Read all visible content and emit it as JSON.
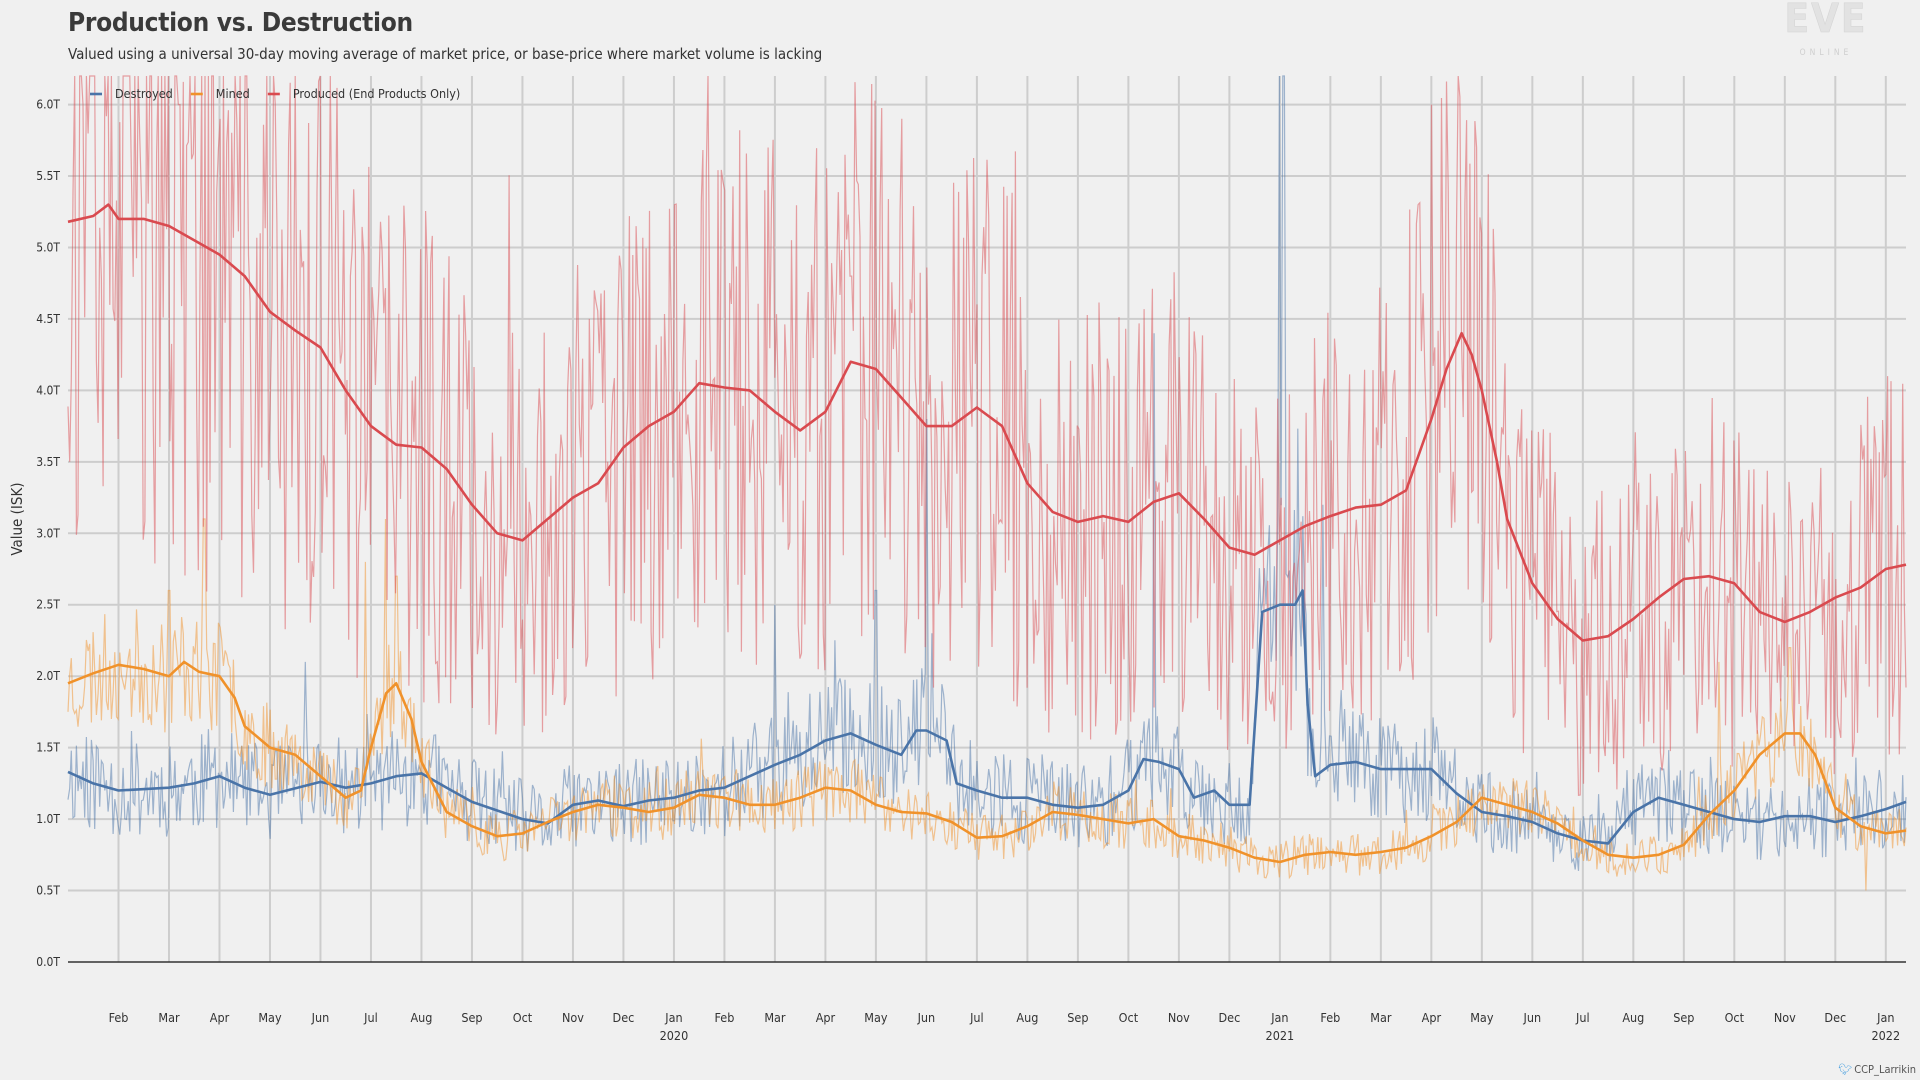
{
  "logo": {
    "main": "EVE",
    "sub": "ONLINE"
  },
  "credit": "CCP_Larrikin",
  "chart_data": {
    "type": "line",
    "title": "Production vs. Destruction",
    "subtitle": "Valued using a universal 30-day moving average of market price, or base-price where market volume is lacking",
    "xlabel": "",
    "ylabel": "Value (ISK)",
    "ylim": [
      0,
      6.2
    ],
    "grid": true,
    "legend": "top-left",
    "y_ticks": [
      {
        "v": 0,
        "label": "0.0T"
      },
      {
        "v": 0.5,
        "label": "0.5T"
      },
      {
        "v": 1,
        "label": "1.0T"
      },
      {
        "v": 1.5,
        "label": "1.5T"
      },
      {
        "v": 2,
        "label": "2.0T"
      },
      {
        "v": 2.5,
        "label": "2.5T"
      },
      {
        "v": 3,
        "label": "3.0T"
      },
      {
        "v": 3.5,
        "label": "3.5T"
      },
      {
        "v": 4,
        "label": "4.0T"
      },
      {
        "v": 4.5,
        "label": "4.5T"
      },
      {
        "v": 5,
        "label": "5.0T"
      },
      {
        "v": 5.5,
        "label": "5.5T"
      },
      {
        "v": 6,
        "label": "6.0T"
      }
    ],
    "x_range_months": [
      0,
      36.4
    ],
    "x_ticks": [
      {
        "m": 1,
        "label": "Feb"
      },
      {
        "m": 2,
        "label": "Mar"
      },
      {
        "m": 3,
        "label": "Apr"
      },
      {
        "m": 4,
        "label": "May"
      },
      {
        "m": 5,
        "label": "Jun"
      },
      {
        "m": 6,
        "label": "Jul"
      },
      {
        "m": 7,
        "label": "Aug"
      },
      {
        "m": 8,
        "label": "Sep"
      },
      {
        "m": 9,
        "label": "Oct"
      },
      {
        "m": 10,
        "label": "Nov"
      },
      {
        "m": 11,
        "label": "Dec"
      },
      {
        "m": 12,
        "label": "Jan",
        "year": "2020"
      },
      {
        "m": 13,
        "label": "Feb"
      },
      {
        "m": 14,
        "label": "Mar"
      },
      {
        "m": 15,
        "label": "Apr"
      },
      {
        "m": 16,
        "label": "May"
      },
      {
        "m": 17,
        "label": "Jun"
      },
      {
        "m": 18,
        "label": "Jul"
      },
      {
        "m": 19,
        "label": "Aug"
      },
      {
        "m": 20,
        "label": "Sep"
      },
      {
        "m": 21,
        "label": "Oct"
      },
      {
        "m": 22,
        "label": "Nov"
      },
      {
        "m": 23,
        "label": "Dec"
      },
      {
        "m": 24,
        "label": "Jan",
        "year": "2021"
      },
      {
        "m": 25,
        "label": "Feb"
      },
      {
        "m": 26,
        "label": "Mar"
      },
      {
        "m": 27,
        "label": "Apr"
      },
      {
        "m": 28,
        "label": "May"
      },
      {
        "m": 29,
        "label": "Jun"
      },
      {
        "m": 30,
        "label": "Jul"
      },
      {
        "m": 31,
        "label": "Aug"
      },
      {
        "m": 32,
        "label": "Sep"
      },
      {
        "m": 33,
        "label": "Oct"
      },
      {
        "m": 34,
        "label": "Nov"
      },
      {
        "m": 35,
        "label": "Dec"
      },
      {
        "m": 36,
        "label": "Jan",
        "year": "2022"
      }
    ],
    "series": [
      {
        "name": "Destroyed",
        "color": "#4a74a8",
        "noise": 0.28,
        "seed": 11,
        "spikes": [
          [
            4.7,
            2.1
          ],
          [
            14.0,
            2.5
          ],
          [
            16.0,
            2.6
          ],
          [
            17.0,
            3.8
          ],
          [
            17.1,
            2.3
          ],
          [
            21.5,
            4.4
          ],
          [
            24.0,
            6.3
          ],
          [
            24.05,
            6.3
          ],
          [
            24.1,
            6.3
          ],
          [
            24.85,
            3.2
          ]
        ],
        "ma": [
          [
            0,
            1.33
          ],
          [
            0.5,
            1.25
          ],
          [
            1,
            1.2
          ],
          [
            2,
            1.22
          ],
          [
            2.5,
            1.25
          ],
          [
            3,
            1.3
          ],
          [
            3.5,
            1.22
          ],
          [
            4,
            1.17
          ],
          [
            5,
            1.26
          ],
          [
            5.5,
            1.22
          ],
          [
            6,
            1.25
          ],
          [
            6.5,
            1.3
          ],
          [
            7,
            1.32
          ],
          [
            7.5,
            1.22
          ],
          [
            8,
            1.12
          ],
          [
            8.5,
            1.06
          ],
          [
            9,
            1.0
          ],
          [
            9.5,
            0.97
          ],
          [
            10,
            1.1
          ],
          [
            10.5,
            1.13
          ],
          [
            11,
            1.09
          ],
          [
            11.5,
            1.13
          ],
          [
            12,
            1.15
          ],
          [
            12.5,
            1.2
          ],
          [
            13,
            1.22
          ],
          [
            13.5,
            1.3
          ],
          [
            14,
            1.38
          ],
          [
            14.5,
            1.45
          ],
          [
            15,
            1.55
          ],
          [
            15.5,
            1.6
          ],
          [
            16,
            1.52
          ],
          [
            16.5,
            1.45
          ],
          [
            16.8,
            1.62
          ],
          [
            17,
            1.62
          ],
          [
            17.4,
            1.55
          ],
          [
            17.6,
            1.25
          ],
          [
            18,
            1.2
          ],
          [
            18.5,
            1.15
          ],
          [
            19,
            1.15
          ],
          [
            19.5,
            1.1
          ],
          [
            20,
            1.08
          ],
          [
            20.5,
            1.1
          ],
          [
            21,
            1.2
          ],
          [
            21.3,
            1.42
          ],
          [
            21.6,
            1.4
          ],
          [
            22,
            1.35
          ],
          [
            22.3,
            1.15
          ],
          [
            22.7,
            1.2
          ],
          [
            23,
            1.1
          ],
          [
            23.4,
            1.1
          ],
          [
            23.55,
            1.9
          ],
          [
            23.65,
            2.45
          ],
          [
            24,
            2.5
          ],
          [
            24.3,
            2.5
          ],
          [
            24.45,
            2.6
          ],
          [
            24.55,
            1.8
          ],
          [
            24.7,
            1.3
          ],
          [
            25,
            1.38
          ],
          [
            25.5,
            1.4
          ],
          [
            26,
            1.35
          ],
          [
            26.5,
            1.35
          ],
          [
            27,
            1.35
          ],
          [
            27.5,
            1.18
          ],
          [
            28,
            1.05
          ],
          [
            28.5,
            1.02
          ],
          [
            29,
            0.98
          ],
          [
            29.5,
            0.9
          ],
          [
            30,
            0.85
          ],
          [
            30.5,
            0.83
          ],
          [
            31,
            1.05
          ],
          [
            31.5,
            1.15
          ],
          [
            32,
            1.1
          ],
          [
            32.5,
            1.05
          ],
          [
            33,
            1.0
          ],
          [
            33.5,
            0.98
          ],
          [
            34,
            1.02
          ],
          [
            34.5,
            1.02
          ],
          [
            35,
            0.98
          ],
          [
            35.5,
            1.02
          ],
          [
            36,
            1.07
          ],
          [
            36.4,
            1.12
          ]
        ]
      },
      {
        "name": "Mined",
        "color": "#f0922b",
        "noise": 0.2,
        "seed": 23,
        "spikes": [
          [
            2.0,
            2.6
          ],
          [
            2.7,
            3.1
          ],
          [
            5.9,
            2.8
          ],
          [
            6.3,
            3.1
          ],
          [
            6.5,
            2.7
          ],
          [
            32.7,
            2.1
          ],
          [
            34.1,
            2.2
          ],
          [
            35.6,
            0.5
          ]
        ],
        "ma": [
          [
            0,
            1.95
          ],
          [
            0.5,
            2.02
          ],
          [
            1,
            2.08
          ],
          [
            1.5,
            2.05
          ],
          [
            2,
            2.0
          ],
          [
            2.3,
            2.1
          ],
          [
            2.6,
            2.03
          ],
          [
            3,
            2.0
          ],
          [
            3.3,
            1.85
          ],
          [
            3.5,
            1.65
          ],
          [
            4,
            1.5
          ],
          [
            4.5,
            1.45
          ],
          [
            5,
            1.3
          ],
          [
            5.5,
            1.15
          ],
          [
            5.8,
            1.2
          ],
          [
            6,
            1.5
          ],
          [
            6.3,
            1.88
          ],
          [
            6.5,
            1.95
          ],
          [
            6.8,
            1.7
          ],
          [
            7,
            1.4
          ],
          [
            7.5,
            1.05
          ],
          [
            8,
            0.95
          ],
          [
            8.5,
            0.88
          ],
          [
            9,
            0.9
          ],
          [
            9.5,
            0.98
          ],
          [
            10,
            1.05
          ],
          [
            10.5,
            1.1
          ],
          [
            11,
            1.08
          ],
          [
            11.5,
            1.05
          ],
          [
            12,
            1.08
          ],
          [
            12.5,
            1.17
          ],
          [
            13,
            1.15
          ],
          [
            13.5,
            1.1
          ],
          [
            14,
            1.1
          ],
          [
            14.5,
            1.15
          ],
          [
            15,
            1.22
          ],
          [
            15.5,
            1.2
          ],
          [
            16,
            1.1
          ],
          [
            16.5,
            1.05
          ],
          [
            17,
            1.04
          ],
          [
            17.5,
            0.98
          ],
          [
            18,
            0.87
          ],
          [
            18.5,
            0.88
          ],
          [
            19,
            0.95
          ],
          [
            19.5,
            1.05
          ],
          [
            20,
            1.03
          ],
          [
            20.5,
            1.0
          ],
          [
            21,
            0.97
          ],
          [
            21.5,
            1.0
          ],
          [
            22,
            0.88
          ],
          [
            22.5,
            0.85
          ],
          [
            23,
            0.8
          ],
          [
            23.5,
            0.73
          ],
          [
            24,
            0.7
          ],
          [
            24.5,
            0.75
          ],
          [
            25,
            0.77
          ],
          [
            25.5,
            0.75
          ],
          [
            26,
            0.77
          ],
          [
            26.5,
            0.8
          ],
          [
            27,
            0.88
          ],
          [
            27.5,
            0.98
          ],
          [
            28,
            1.15
          ],
          [
            28.5,
            1.1
          ],
          [
            29,
            1.05
          ],
          [
            29.5,
            0.97
          ],
          [
            30,
            0.85
          ],
          [
            30.5,
            0.75
          ],
          [
            31,
            0.73
          ],
          [
            31.5,
            0.75
          ],
          [
            32,
            0.82
          ],
          [
            32.5,
            1.03
          ],
          [
            33,
            1.2
          ],
          [
            33.5,
            1.45
          ],
          [
            34,
            1.6
          ],
          [
            34.3,
            1.6
          ],
          [
            34.6,
            1.45
          ],
          [
            35,
            1.08
          ],
          [
            35.5,
            0.95
          ],
          [
            36,
            0.9
          ],
          [
            36.4,
            0.92
          ]
        ]
      },
      {
        "name": "Produced (End Products Only)",
        "color": "#d94a4f",
        "noise": 0.5,
        "seed": 37,
        "spikes": [
          [
            0.3,
            6.0
          ],
          [
            2.2,
            6.0
          ],
          [
            3.0,
            5.9
          ],
          [
            3.8,
            5.1
          ],
          [
            13.0,
            5.4
          ],
          [
            15.5,
            4.8
          ],
          [
            27.0,
            6.0
          ],
          [
            27.9,
            5.7
          ],
          [
            28.0,
            5.1
          ]
        ],
        "ma": [
          [
            0,
            5.18
          ],
          [
            0.5,
            5.22
          ],
          [
            0.8,
            5.3
          ],
          [
            1,
            5.2
          ],
          [
            1.5,
            5.2
          ],
          [
            2,
            5.15
          ],
          [
            2.5,
            5.05
          ],
          [
            3,
            4.95
          ],
          [
            3.5,
            4.8
          ],
          [
            4,
            4.55
          ],
          [
            4.5,
            4.42
          ],
          [
            5,
            4.3
          ],
          [
            5.5,
            4.0
          ],
          [
            6,
            3.75
          ],
          [
            6.5,
            3.62
          ],
          [
            7,
            3.6
          ],
          [
            7.5,
            3.45
          ],
          [
            8,
            3.2
          ],
          [
            8.5,
            3.0
          ],
          [
            9,
            2.95
          ],
          [
            9.5,
            3.1
          ],
          [
            10,
            3.25
          ],
          [
            10.5,
            3.35
          ],
          [
            11,
            3.6
          ],
          [
            11.5,
            3.75
          ],
          [
            12,
            3.85
          ],
          [
            12.5,
            4.05
          ],
          [
            13,
            4.02
          ],
          [
            13.5,
            4.0
          ],
          [
            14,
            3.85
          ],
          [
            14.5,
            3.72
          ],
          [
            15,
            3.85
          ],
          [
            15.5,
            4.2
          ],
          [
            16,
            4.15
          ],
          [
            16.5,
            3.95
          ],
          [
            17,
            3.75
          ],
          [
            17.5,
            3.75
          ],
          [
            18,
            3.88
          ],
          [
            18.5,
            3.75
          ],
          [
            19,
            3.35
          ],
          [
            19.5,
            3.15
          ],
          [
            20,
            3.08
          ],
          [
            20.5,
            3.12
          ],
          [
            21,
            3.08
          ],
          [
            21.5,
            3.22
          ],
          [
            22,
            3.28
          ],
          [
            22.5,
            3.1
          ],
          [
            23,
            2.9
          ],
          [
            23.5,
            2.85
          ],
          [
            24,
            2.95
          ],
          [
            24.5,
            3.05
          ],
          [
            25,
            3.12
          ],
          [
            25.5,
            3.18
          ],
          [
            26,
            3.2
          ],
          [
            26.5,
            3.3
          ],
          [
            27,
            3.8
          ],
          [
            27.3,
            4.15
          ],
          [
            27.6,
            4.4
          ],
          [
            27.8,
            4.25
          ],
          [
            28,
            4.0
          ],
          [
            28.3,
            3.5
          ],
          [
            28.5,
            3.1
          ],
          [
            29,
            2.65
          ],
          [
            29.5,
            2.4
          ],
          [
            30,
            2.25
          ],
          [
            30.5,
            2.28
          ],
          [
            31,
            2.4
          ],
          [
            31.5,
            2.55
          ],
          [
            32,
            2.68
          ],
          [
            32.5,
            2.7
          ],
          [
            33,
            2.65
          ],
          [
            33.5,
            2.45
          ],
          [
            34,
            2.38
          ],
          [
            34.5,
            2.45
          ],
          [
            35,
            2.55
          ],
          [
            35.5,
            2.62
          ],
          [
            36,
            2.75
          ],
          [
            36.4,
            2.78
          ]
        ]
      }
    ]
  }
}
